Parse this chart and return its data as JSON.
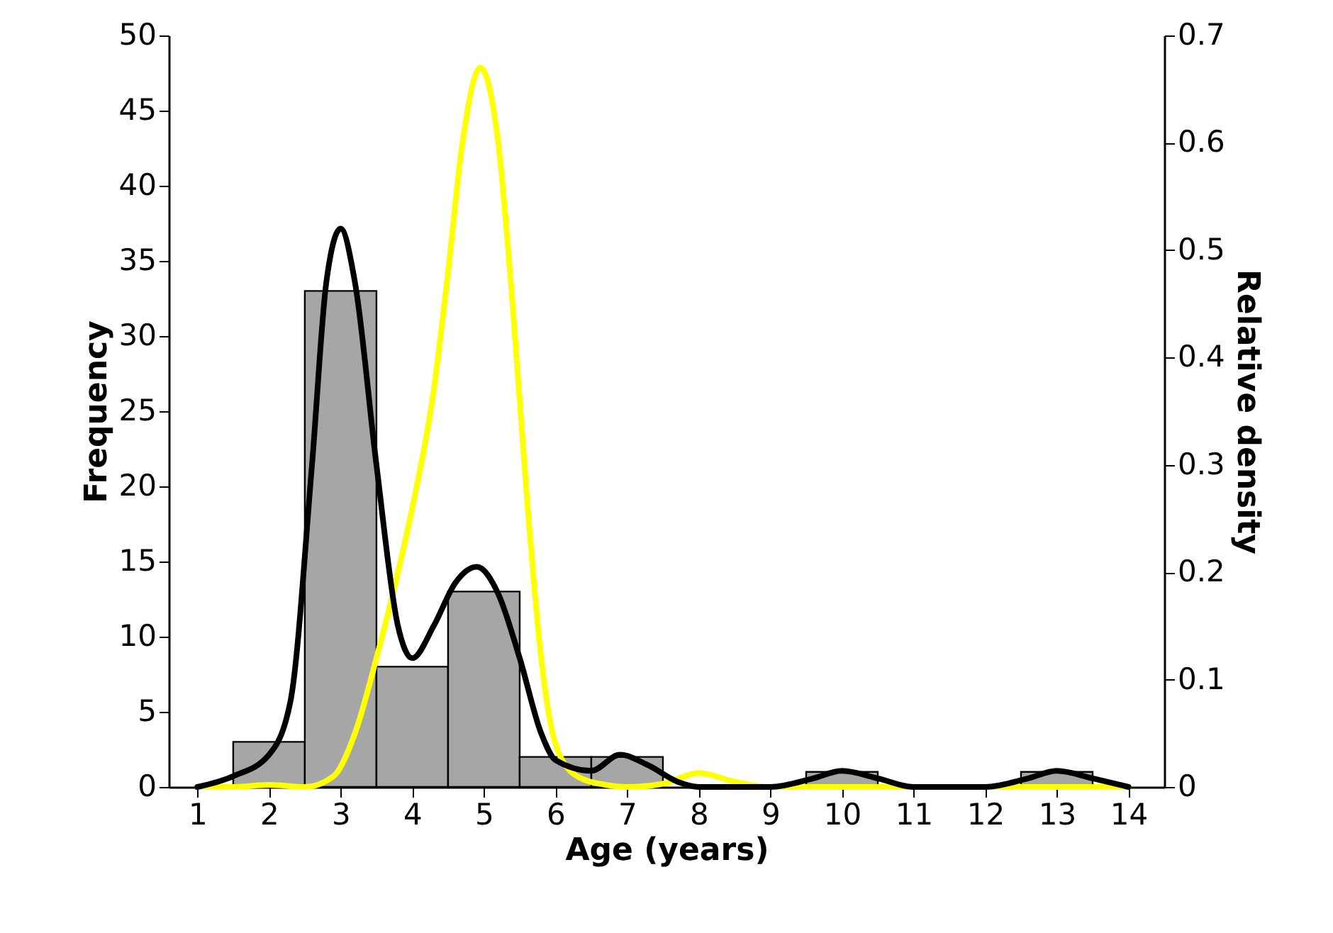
{
  "chart_data": {
    "type": "histogram",
    "xlabel": "Age (years)",
    "ylabel": "Frequency",
    "y2label": "Relative density",
    "color": "#a6a6a6",
    "bins": [
      1.5,
      2.5,
      3.5,
      4.5,
      5.5,
      6.5,
      7.5,
      8.5,
      9.5,
      10.5,
      11.5,
      12.5,
      13.5
    ],
    "values": [
      3,
      33,
      8,
      13,
      2,
      2,
      0,
      0,
      1,
      0,
      0,
      1
    ],
    "series": [
      {
        "type": "line",
        "axis": "y2",
        "color": "#ffff00",
        "x": [
          1,
          1.5,
          2,
          2.5,
          2.9,
          3.2,
          3.5,
          3.8,
          4,
          4.3,
          4.5,
          4.7,
          4.95,
          5.2,
          5.4,
          5.6,
          5.8,
          6,
          6.3,
          6.7,
          7,
          7.5,
          8,
          8.5,
          9,
          14
        ],
        "values": [
          0,
          0,
          0.002,
          0,
          0.01,
          0.05,
          0.12,
          0.2,
          0.26,
          0.37,
          0.48,
          0.6,
          0.67,
          0.6,
          0.45,
          0.27,
          0.12,
          0.04,
          0.01,
          0.002,
          0,
          0.003,
          0.013,
          0.005,
          0,
          0
        ]
      },
      {
        "type": "line",
        "axis": "y2",
        "color": "#000000",
        "x": [
          1,
          1.5,
          2,
          2.3,
          2.6,
          2.8,
          3,
          3.2,
          3.5,
          3.8,
          4,
          4.3,
          4.6,
          4.9,
          5.2,
          5.5,
          5.8,
          6,
          6.5,
          6.9,
          7.3,
          7.7,
          8,
          9,
          9.6,
          10,
          10.5,
          11,
          12,
          12.6,
          13,
          13.5,
          14
        ],
        "values": [
          0,
          0.01,
          0.03,
          0.08,
          0.3,
          0.47,
          0.52,
          0.47,
          0.3,
          0.15,
          0.12,
          0.15,
          0.19,
          0.205,
          0.18,
          0.12,
          0.05,
          0.025,
          0.015,
          0.03,
          0.02,
          0.005,
          0,
          0,
          0.008,
          0.015,
          0.008,
          0,
          0,
          0.008,
          0.015,
          0.008,
          0
        ]
      }
    ],
    "xlim": [
      0.6,
      14.5
    ],
    "xticks": [
      1,
      2,
      3,
      4,
      5,
      6,
      7,
      8,
      9,
      10,
      11,
      12,
      13,
      14
    ],
    "ylim": [
      0,
      50
    ],
    "yticks": [
      0,
      5,
      10,
      15,
      20,
      25,
      30,
      35,
      40,
      45,
      50
    ],
    "y2lim": [
      0,
      0.7
    ],
    "y2ticks": [
      0,
      0.1,
      0.2,
      0.3,
      0.4,
      0.5,
      0.6,
      0.7
    ],
    "grid": false,
    "legend": false
  }
}
